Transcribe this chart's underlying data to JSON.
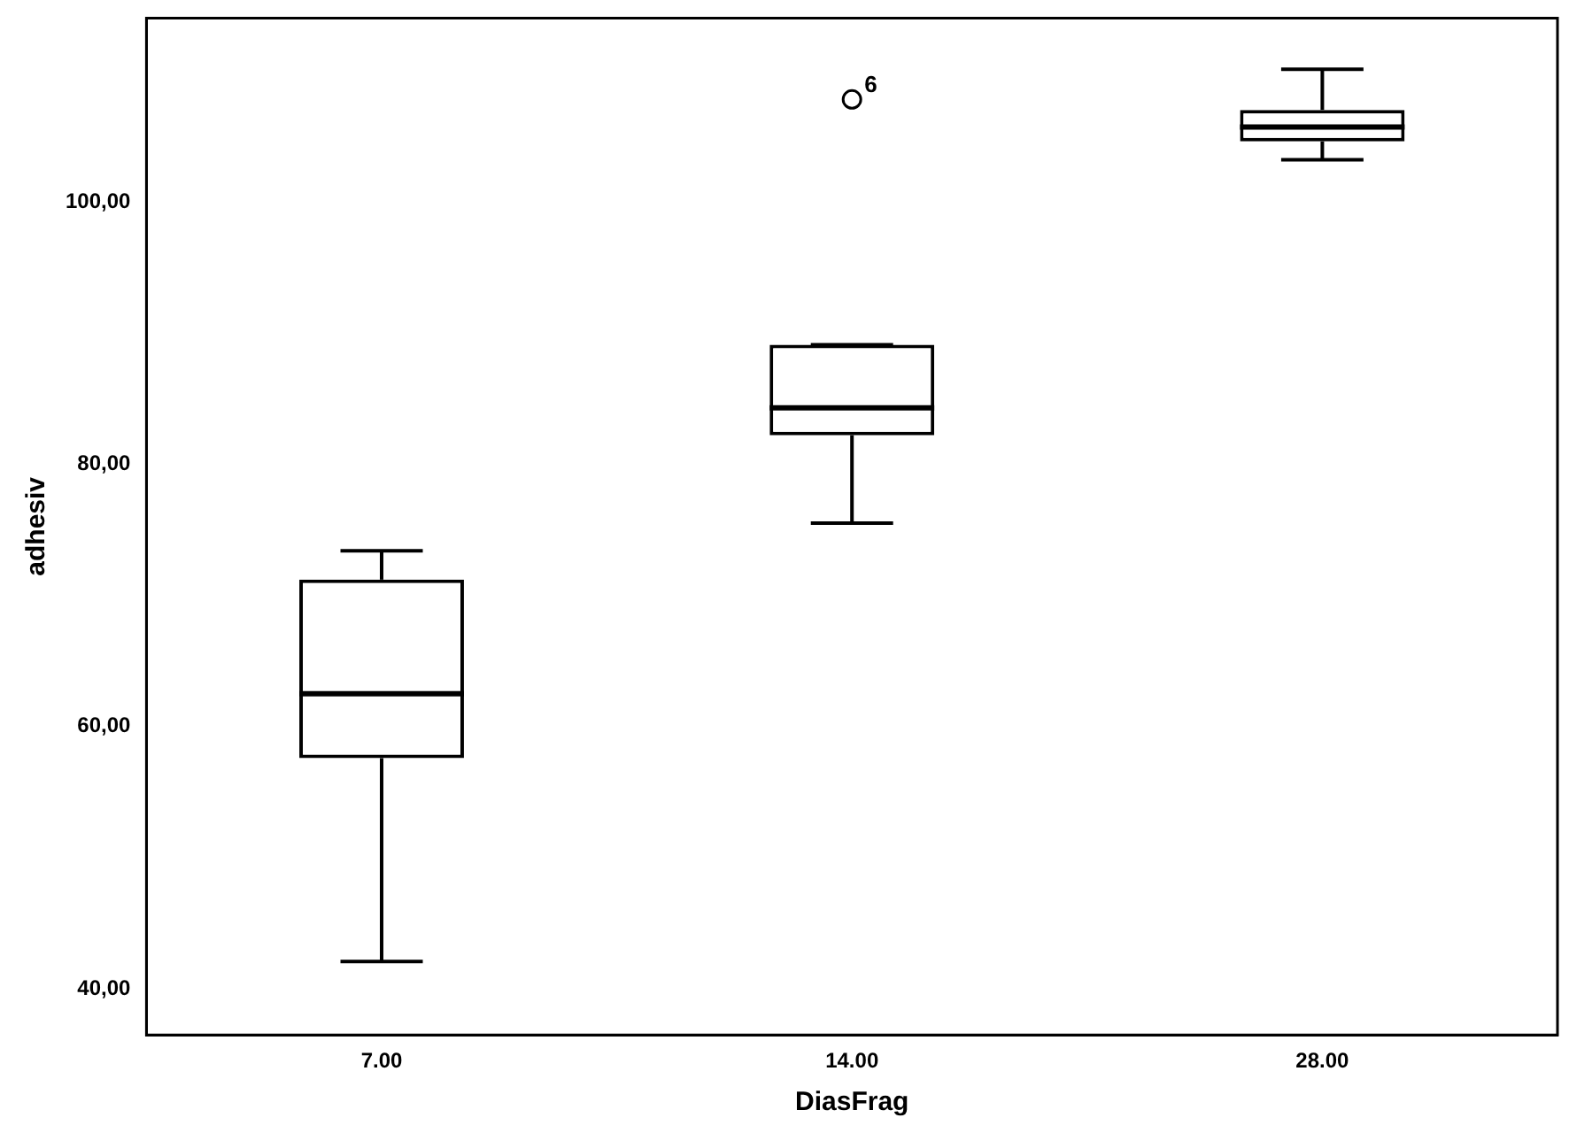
{
  "chart_data": {
    "type": "box",
    "xlabel": "DiasFrag",
    "ylabel": "adhesiv",
    "categories": [
      "7.00",
      "14.00",
      "28.00"
    ],
    "boxes": [
      {
        "low": 42.1,
        "q1": 57.6,
        "median": 62.5,
        "q3": 71.2,
        "high": 73.4
      },
      {
        "low": 75.5,
        "q1": 82.2,
        "median": 84.3,
        "q3": 89.1,
        "high": 89.1,
        "outliers": [
          107.8
        ]
      },
      {
        "low": 103.2,
        "q1": 104.6,
        "median": 105.7,
        "q3": 107.0,
        "high": 110.1
      }
    ],
    "ylim": [
      36.5,
      114
    ],
    "yticks": [
      {
        "value": 40,
        "label": "40,00"
      },
      {
        "value": 60,
        "label": "60,00"
      },
      {
        "value": 80,
        "label": "80,00"
      },
      {
        "value": 100,
        "label": "100,00"
      }
    ],
    "annotations": [
      "6"
    ]
  }
}
